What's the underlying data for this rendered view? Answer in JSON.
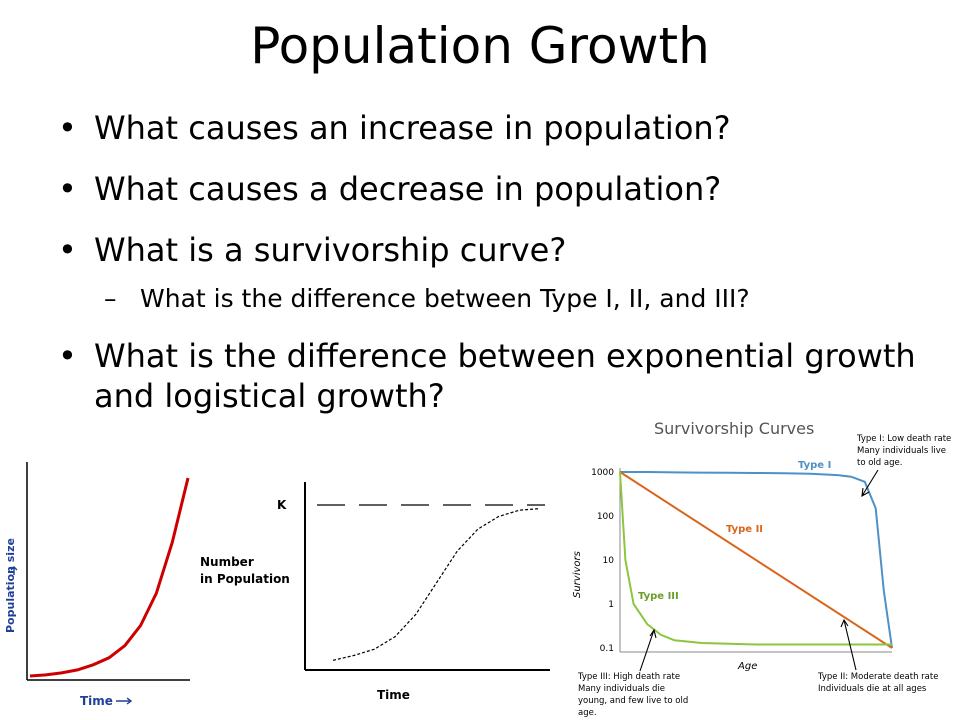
{
  "slide": {
    "title": "Population Growth",
    "bullets": [
      "What causes an increase in population?",
      "What causes a decrease in population?",
      "What is a survivorship curve?",
      "What is the difference between Type I, II, and III?",
      "What is the difference between exponential growth and logistical growth?"
    ]
  },
  "colors": {
    "exp_curve": "#cc0000",
    "axis_blue": "#1f3f99",
    "type1": "#4f90c6",
    "type2": "#d9651b",
    "type3": "#8cc63f"
  },
  "chart_data": [
    {
      "type": "line",
      "xlabel": "Time",
      "ylabel": "Population size",
      "series": [
        {
          "x": [
            0,
            1,
            2,
            3,
            4,
            5,
            6,
            7,
            8,
            9,
            10
          ],
          "y": [
            2,
            2.5,
            3.5,
            5,
            7.5,
            11,
            17,
            27,
            43,
            68,
            100
          ]
        }
      ]
    },
    {
      "type": "line",
      "xlabel": "Time",
      "ylabel": "Number in Population",
      "annotations": [
        "K"
      ],
      "series": [
        {
          "x": [
            0,
            1,
            2,
            3,
            4,
            5,
            6,
            7,
            8,
            9,
            10
          ],
          "y": [
            3,
            6,
            10,
            18,
            32,
            52,
            72,
            86,
            94,
            98,
            99
          ]
        }
      ]
    },
    {
      "type": "line",
      "title": "Survivorship Curves",
      "xlabel": "Age",
      "ylabel": "Survivors",
      "yticks": [
        "1000",
        "100",
        "10",
        "1",
        "0.1"
      ],
      "ylim": [
        0.1,
        1000
      ],
      "yscale": "log",
      "series": [
        {
          "name": "Type I",
          "x": [
            0,
            0.1,
            0.2,
            0.3,
            0.4,
            0.5,
            0.6,
            0.7,
            0.8,
            0.85,
            0.9,
            0.94,
            0.97,
            1.0
          ],
          "y": [
            1000,
            1000,
            980,
            970,
            960,
            950,
            940,
            910,
            850,
            780,
            600,
            150,
            2,
            0.1
          ]
        },
        {
          "name": "Type II",
          "x": [
            0,
            1
          ],
          "y": [
            1000,
            0.1
          ]
        },
        {
          "name": "Type III",
          "x": [
            0,
            0.02,
            0.05,
            0.1,
            0.15,
            0.2,
            0.3,
            0.5,
            1.0
          ],
          "y": [
            1000,
            10,
            1,
            0.35,
            0.2,
            0.15,
            0.13,
            0.12,
            0.12
          ]
        }
      ],
      "annotations": [
        "Type I: Low death rate",
        "Many individuals live",
        "to old age.",
        "Type II: Moderate death rate",
        "Individuals die at all ages",
        "Type III: High death rate",
        "Many individuals die",
        "young, and few live to old",
        "age."
      ]
    }
  ]
}
